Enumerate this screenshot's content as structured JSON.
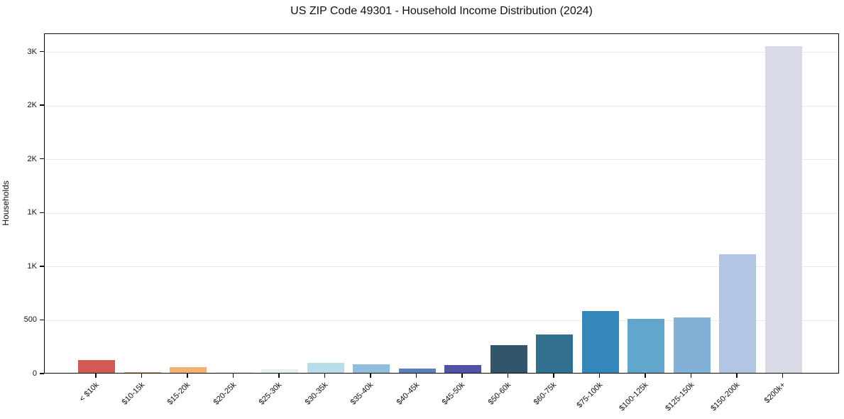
{
  "chart_data": {
    "type": "bar",
    "title": "US ZIP Code 49301 - Household Income Distribution (2024)",
    "xlabel": "",
    "ylabel": "Households",
    "categories": [
      "< $10k",
      "$10-15k",
      "$15-20k",
      "$20-25k",
      "$25-30k",
      "$30-35k",
      "$35-40k",
      "$40-45k",
      "$45-50k",
      "$50-60k",
      "$60-75k",
      "$75-100k",
      "$100-125k",
      "$125-150k",
      "$150-200k",
      "$200k+"
    ],
    "values": [
      120,
      4,
      55,
      5,
      30,
      90,
      82,
      42,
      70,
      255,
      360,
      575,
      505,
      515,
      1105,
      3045
    ],
    "bar_colors": [
      "#d15b52",
      "#eda258",
      "#f5b26e",
      "#f8ecd8",
      "#e2f1ef",
      "#b7dde9",
      "#8fbddd",
      "#5b7fbc",
      "#5452a6",
      "#31566b",
      "#31708f",
      "#3487bb",
      "#63a6cc",
      "#83b1d5",
      "#b2c5e2",
      "#d9dbe8"
    ],
    "yticks": [
      {
        "value": 0,
        "label": "0"
      },
      {
        "value": 500,
        "label": "500"
      },
      {
        "value": 1000,
        "label": "1K"
      },
      {
        "value": 1500,
        "label": "1K"
      },
      {
        "value": 2000,
        "label": "2K"
      },
      {
        "value": 2500,
        "label": "2K"
      },
      {
        "value": 3000,
        "label": "3K"
      }
    ],
    "ylim": [
      0,
      3170
    ],
    "grid": "horizontal",
    "legend": "none",
    "style": {
      "background": "#ffffff",
      "grid_color": "#ebebeb",
      "spine_color": "#0a0a0a",
      "text_color": "#111111"
    }
  }
}
